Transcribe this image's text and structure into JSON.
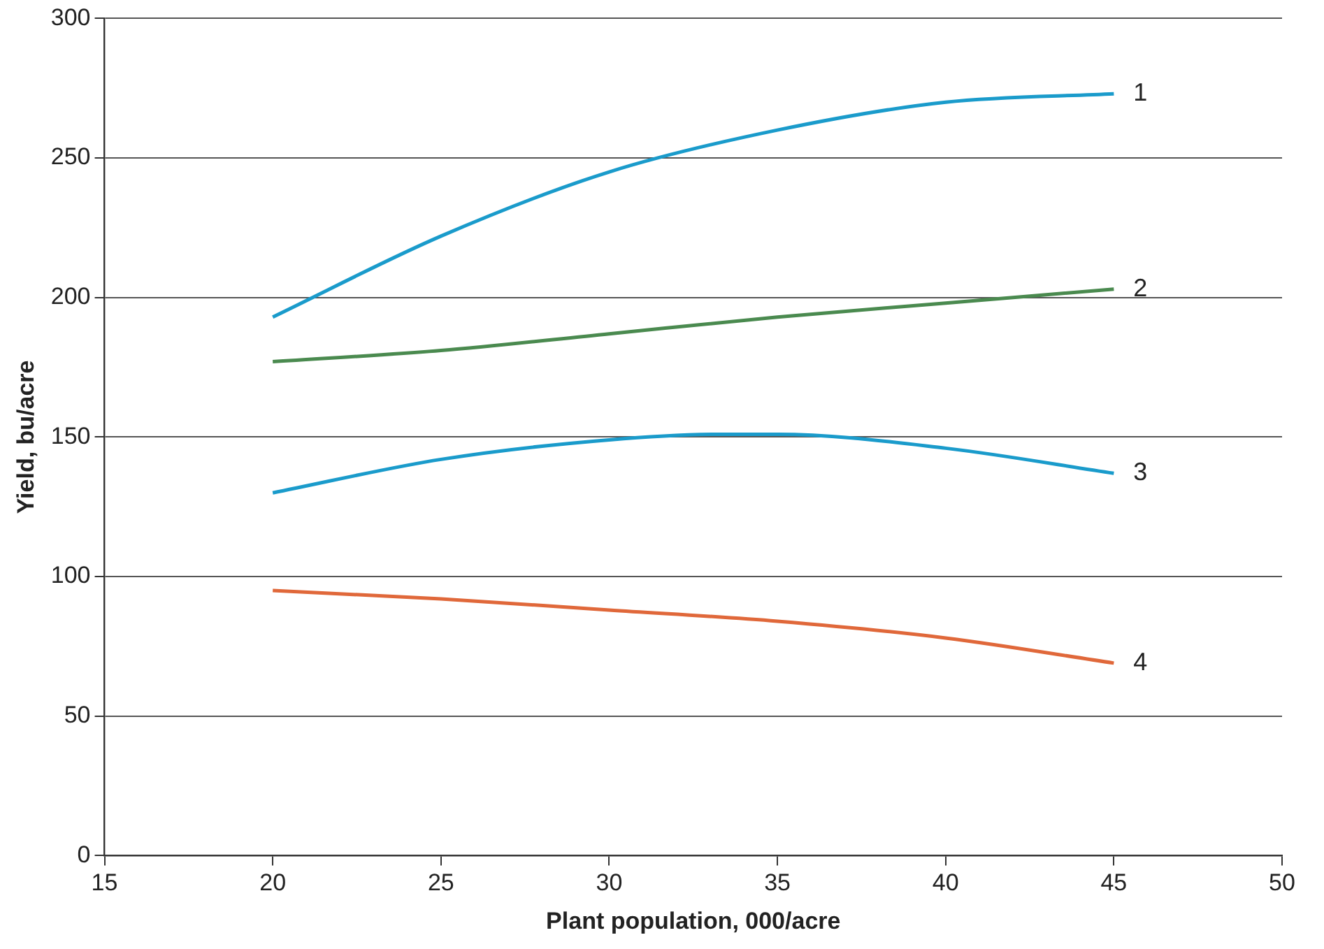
{
  "chart_data": {
    "type": "line",
    "xlabel": "Plant population, 000/acre",
    "ylabel": "Yield, bu/acre",
    "xlim": [
      15,
      50
    ],
    "xticks": [
      15,
      20,
      25,
      30,
      35,
      40,
      45,
      50
    ],
    "ylim": [
      0,
      300
    ],
    "yticks": [
      0,
      50,
      100,
      150,
      200,
      250,
      300
    ],
    "grid": "y",
    "legend": false,
    "marker": "none",
    "line_style": "solid",
    "series": [
      {
        "name": "1",
        "color": "#1a9bcb",
        "x": [
          20,
          25,
          30,
          35,
          40,
          45
        ],
        "values": [
          193,
          222,
          245,
          260,
          270,
          273
        ]
      },
      {
        "name": "2",
        "color": "#4a8a4f",
        "x": [
          20,
          25,
          30,
          35,
          40,
          45
        ],
        "values": [
          177,
          181,
          187,
          193,
          198,
          203
        ]
      },
      {
        "name": "3",
        "color": "#1a9bcb",
        "x": [
          20,
          25,
          30,
          33.5,
          35,
          40,
          45
        ],
        "values": [
          130,
          142,
          149,
          151,
          151,
          146,
          137
        ]
      },
      {
        "name": "4",
        "color": "#e0683a",
        "x": [
          20,
          25,
          30,
          35,
          40,
          45
        ],
        "values": [
          95,
          92,
          88,
          84,
          78,
          69
        ]
      }
    ]
  }
}
